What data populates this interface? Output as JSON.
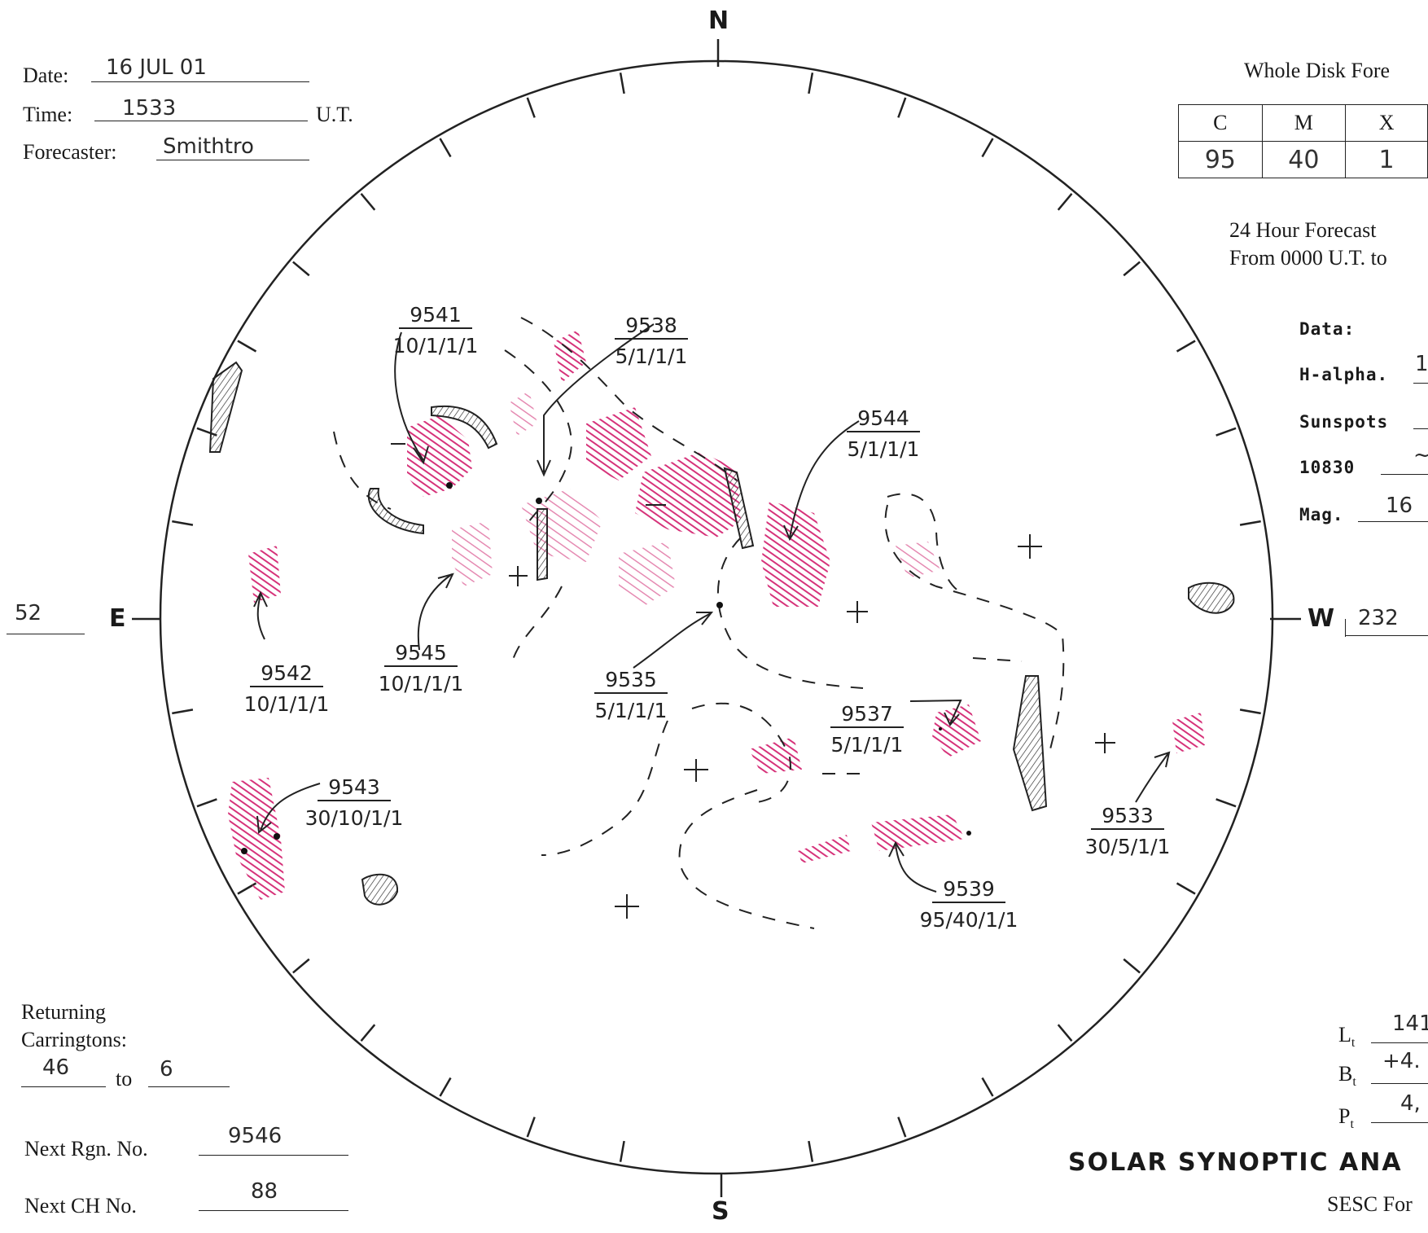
{
  "header": {
    "date_label": "Date:",
    "date_value": "16 JUL 01",
    "time_label": "Time:",
    "time_value": "1533",
    "time_unit": "U.T.",
    "forecaster_label": "Forecaster:",
    "forecaster_value": "Smithtro"
  },
  "forecast": {
    "title": "Whole Disk Fore",
    "columns": [
      "C",
      "M",
      "X"
    ],
    "values": [
      "95",
      "40",
      "1"
    ],
    "period_line1": "24 Hour Forecast",
    "period_line2": "From 0000 U.T. to"
  },
  "data_panel": {
    "title": "Data:",
    "rows": [
      {
        "label": "H-alpha.",
        "value": "1"
      },
      {
        "label": "Sunspots",
        "value": ""
      },
      {
        "label": "10830",
        "value": "~"
      },
      {
        "label": "Mag.",
        "value": "16"
      }
    ]
  },
  "compass": {
    "north": "N",
    "south": "S",
    "east": "E",
    "west": "W"
  },
  "limb": {
    "east_value": "52",
    "west_value": "232"
  },
  "regions": [
    {
      "id": "9541",
      "probs": "10/1/1/1"
    },
    {
      "id": "9538",
      "probs": "5/1/1/1"
    },
    {
      "id": "9544",
      "probs": "5/1/1/1"
    },
    {
      "id": "9542",
      "probs": "10/1/1/1"
    },
    {
      "id": "9545",
      "probs": "10/1/1/1"
    },
    {
      "id": "9535",
      "probs": "5/1/1/1"
    },
    {
      "id": "9537",
      "probs": "5/1/1/1"
    },
    {
      "id": "9543",
      "probs": "30/10/1/1"
    },
    {
      "id": "9533",
      "probs": "30/5/1/1"
    },
    {
      "id": "9539",
      "probs": "95/40/1/1"
    }
  ],
  "returning": {
    "label_line1": "Returning",
    "label_line2": "Carringtons:",
    "from": "46",
    "to_label": "to",
    "to": "6"
  },
  "next_region": {
    "label": "Next Rgn. No.",
    "value": "9546"
  },
  "next_ch": {
    "label": "Next CH No.",
    "value": "88"
  },
  "ephemeris": [
    {
      "label": "L",
      "sub": "t",
      "value": "141"
    },
    {
      "label": "B",
      "sub": "t",
      "value": "+4."
    },
    {
      "label": "P",
      "sub": "t",
      "value": "4,"
    }
  ],
  "footer": {
    "title": "SOLAR SYNOPTIC ANA",
    "subtitle": "SESC For"
  },
  "colors": {
    "plage": "#d6337a",
    "ink": "#222222",
    "background": "#ffffff"
  }
}
